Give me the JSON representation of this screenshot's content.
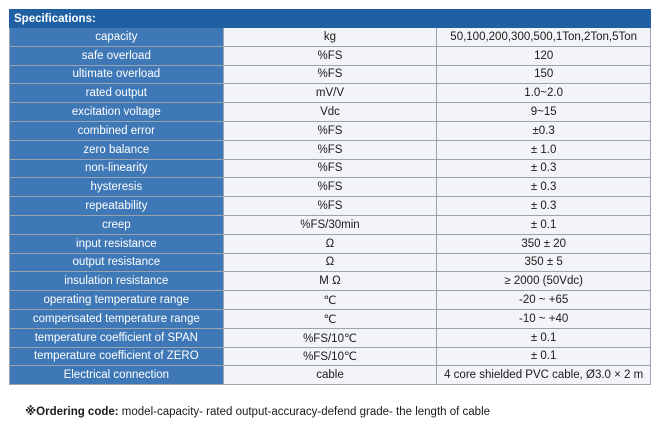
{
  "header": {
    "title": "Specifications:"
  },
  "rows": [
    {
      "param": "capacity",
      "unit": "kg",
      "value": "50,100,200,300,500,1Ton,2Ton,5Ton"
    },
    {
      "param": "safe overload",
      "unit": "%FS",
      "value": "120"
    },
    {
      "param": "ultimate overload",
      "unit": "%FS",
      "value": "150"
    },
    {
      "param": "rated output",
      "unit": "mV/V",
      "value": "1.0~2.0"
    },
    {
      "param": "excitation voltage",
      "unit": "Vdc",
      "value": "9~15"
    },
    {
      "param": "combined error",
      "unit": "%FS",
      "value": "±0.3"
    },
    {
      "param": "zero balance",
      "unit": "%FS",
      "value": "± 1.0"
    },
    {
      "param": "non-linearity",
      "unit": "%FS",
      "value": "± 0.3"
    },
    {
      "param": "hysteresis",
      "unit": "%FS",
      "value": "± 0.3"
    },
    {
      "param": "repeatability",
      "unit": "%FS",
      "value": "± 0.3"
    },
    {
      "param": "creep",
      "unit": "%FS/30min",
      "value": "± 0.1"
    },
    {
      "param": "input resistance",
      "unit": "Ω",
      "value": "350 ± 20"
    },
    {
      "param": "output resistance",
      "unit": "Ω",
      "value": "350 ± 5"
    },
    {
      "param": "insulation resistance",
      "unit": "M Ω",
      "value": "≥ 2000 (50Vdc)"
    },
    {
      "param": "operating temperature range",
      "unit": "℃",
      "value": "-20 ~ +65"
    },
    {
      "param": "compensated temperature range",
      "unit": "℃",
      "value": "-10 ~ +40"
    },
    {
      "param": "temperature coefficient of SPAN",
      "unit": "%FS/10℃",
      "value": "± 0.1"
    },
    {
      "param": "temperature coefficient of ZERO",
      "unit": "%FS/10℃",
      "value": "± 0.1"
    },
    {
      "param": "Electrical connection",
      "unit": "cable",
      "value": "4 core shielded PVC cable, Ø3.0 × 2 m"
    }
  ],
  "note": {
    "label": "※Ordering code:",
    "text": " model-capacity- rated output-accuracy-defend grade- the length of cable"
  },
  "colors": {
    "header_bg": "#1f5fa4",
    "param_bg": "#3e78b6",
    "cell_bg": "#f2f4f7"
  }
}
